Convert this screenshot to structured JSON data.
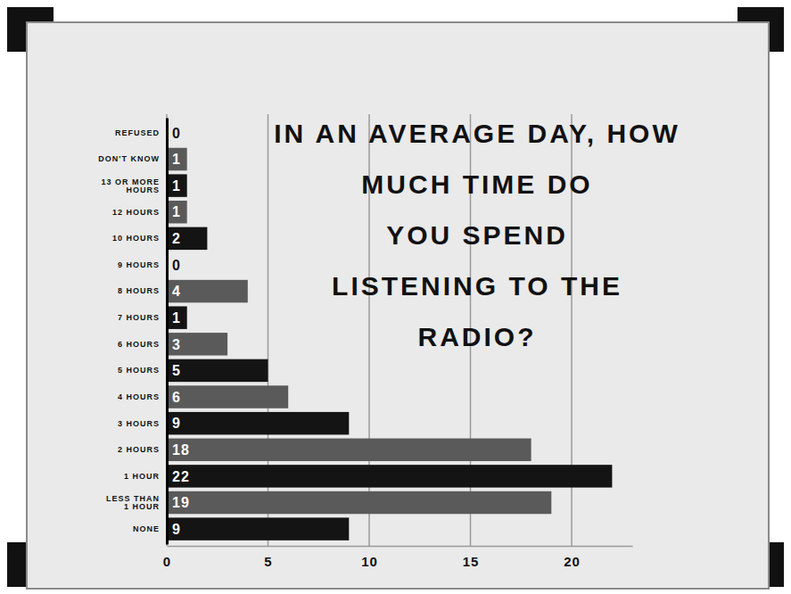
{
  "chart_data": {
    "type": "bar",
    "orientation": "horizontal",
    "title": "IN AN AVERAGE DAY, HOW MUCH TIME DO YOU SPEND LISTENING TO THE RADIO?",
    "categories": [
      "REFUSED",
      "DON'T KNOW",
      "13 OR MORE HOURS",
      "12 HOURS",
      "10 HOURS",
      "9 HOURS",
      "8 HOURS",
      "7 HOURS",
      "6 HOURS",
      "5 HOURS",
      "4 HOURS",
      "3 HOURS",
      "2 HOURS",
      "1 HOUR",
      "LESS THAN 1 HOUR",
      "NONE"
    ],
    "values": [
      0,
      1,
      1,
      1,
      2,
      0,
      4,
      1,
      3,
      5,
      6,
      9,
      18,
      22,
      19,
      9
    ],
    "colors": [
      "#141414",
      "#5a5a5a",
      "#141414",
      "#5a5a5a",
      "#141414",
      "#5a5a5a",
      "#5a5a5a",
      "#141414",
      "#5a5a5a",
      "#141414",
      "#5a5a5a",
      "#141414",
      "#5a5a5a",
      "#141414",
      "#5a5a5a",
      "#141414"
    ],
    "xlim": [
      0,
      23
    ],
    "xticks": [
      0,
      5,
      10,
      15,
      20
    ],
    "grid": true,
    "data_labels": true
  }
}
